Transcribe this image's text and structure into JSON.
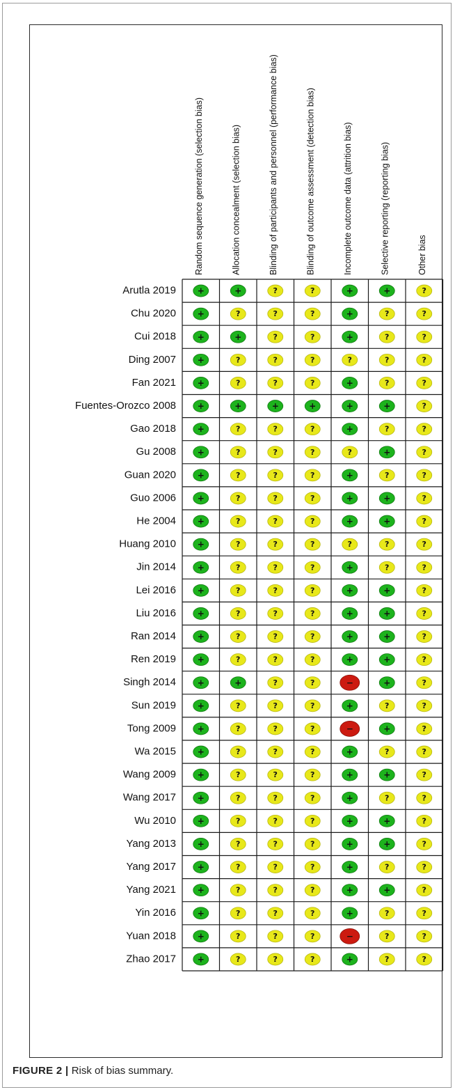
{
  "caption": {
    "label": "FIGURE 2 |",
    "text": "Risk of bias summary."
  },
  "chart_data": {
    "type": "table",
    "domains": [
      "Random sequence generation (selection bias)",
      "Allocation concealment (selection bias)",
      "Blinding of participants and personnel (performance bias)",
      "Blinding of outcome assessment (detection bias)",
      "Incomplete outcome data (attrition bias)",
      "Selective reporting (reporting bias)",
      "Other bias"
    ],
    "legend": {
      "+": {
        "symbol": "+",
        "color": "#1db31d"
      },
      "?": {
        "symbol": "?",
        "color": "#e8e81a"
      },
      "-": {
        "symbol": "−",
        "color": "#cc1a10"
      }
    },
    "studies": [
      {
        "name": "Arutla 2019",
        "ratings": [
          "+",
          "+",
          "?",
          "?",
          "+",
          "+",
          "?"
        ]
      },
      {
        "name": "Chu 2020",
        "ratings": [
          "+",
          "?",
          "?",
          "?",
          "+",
          "?",
          "?"
        ]
      },
      {
        "name": "Cui 2018",
        "ratings": [
          "+",
          "+",
          "?",
          "?",
          "+",
          "?",
          "?"
        ]
      },
      {
        "name": "Ding 2007",
        "ratings": [
          "+",
          "?",
          "?",
          "?",
          "?",
          "?",
          "?"
        ]
      },
      {
        "name": "Fan 2021",
        "ratings": [
          "+",
          "?",
          "?",
          "?",
          "+",
          "?",
          "?"
        ]
      },
      {
        "name": "Fuentes-Orozco 2008",
        "ratings": [
          "+",
          "+",
          "+",
          "+",
          "+",
          "+",
          "?"
        ]
      },
      {
        "name": "Gao 2018",
        "ratings": [
          "+",
          "?",
          "?",
          "?",
          "+",
          "?",
          "?"
        ]
      },
      {
        "name": "Gu 2008",
        "ratings": [
          "+",
          "?",
          "?",
          "?",
          "?",
          "+",
          "?"
        ]
      },
      {
        "name": "Guan 2020",
        "ratings": [
          "+",
          "?",
          "?",
          "?",
          "+",
          "?",
          "?"
        ]
      },
      {
        "name": "Guo 2006",
        "ratings": [
          "+",
          "?",
          "?",
          "?",
          "+",
          "+",
          "?"
        ]
      },
      {
        "name": "He 2004",
        "ratings": [
          "+",
          "?",
          "?",
          "?",
          "+",
          "+",
          "?"
        ]
      },
      {
        "name": "Huang 2010",
        "ratings": [
          "+",
          "?",
          "?",
          "?",
          "?",
          "?",
          "?"
        ]
      },
      {
        "name": "Jin 2014",
        "ratings": [
          "+",
          "?",
          "?",
          "?",
          "+",
          "?",
          "?"
        ]
      },
      {
        "name": "Lei 2016",
        "ratings": [
          "+",
          "?",
          "?",
          "?",
          "+",
          "+",
          "?"
        ]
      },
      {
        "name": "Liu 2016",
        "ratings": [
          "+",
          "?",
          "?",
          "?",
          "+",
          "+",
          "?"
        ]
      },
      {
        "name": "Ran 2014",
        "ratings": [
          "+",
          "?",
          "?",
          "?",
          "+",
          "+",
          "?"
        ]
      },
      {
        "name": "Ren 2019",
        "ratings": [
          "+",
          "?",
          "?",
          "?",
          "+",
          "+",
          "?"
        ]
      },
      {
        "name": "Singh 2014",
        "ratings": [
          "+",
          "+",
          "?",
          "?",
          "-",
          "+",
          "?"
        ]
      },
      {
        "name": "Sun 2019",
        "ratings": [
          "+",
          "?",
          "?",
          "?",
          "+",
          "?",
          "?"
        ]
      },
      {
        "name": "Tong 2009",
        "ratings": [
          "+",
          "?",
          "?",
          "?",
          "-",
          "+",
          "?"
        ]
      },
      {
        "name": "Wa 2015",
        "ratings": [
          "+",
          "?",
          "?",
          "?",
          "+",
          "?",
          "?"
        ]
      },
      {
        "name": "Wang 2009",
        "ratings": [
          "+",
          "?",
          "?",
          "?",
          "+",
          "+",
          "?"
        ]
      },
      {
        "name": "Wang 2017",
        "ratings": [
          "+",
          "?",
          "?",
          "?",
          "+",
          "?",
          "?"
        ]
      },
      {
        "name": "Wu 2010",
        "ratings": [
          "+",
          "?",
          "?",
          "?",
          "+",
          "+",
          "?"
        ]
      },
      {
        "name": "Yang 2013",
        "ratings": [
          "+",
          "?",
          "?",
          "?",
          "+",
          "+",
          "?"
        ]
      },
      {
        "name": "Yang 2017",
        "ratings": [
          "+",
          "?",
          "?",
          "?",
          "+",
          "?",
          "?"
        ]
      },
      {
        "name": "Yang 2021",
        "ratings": [
          "+",
          "?",
          "?",
          "?",
          "+",
          "+",
          "?"
        ]
      },
      {
        "name": "Yin 2016",
        "ratings": [
          "+",
          "?",
          "?",
          "?",
          "+",
          "?",
          "?"
        ]
      },
      {
        "name": "Yuan 2018",
        "ratings": [
          "+",
          "?",
          "?",
          "?",
          "-",
          "?",
          "?"
        ]
      },
      {
        "name": "Zhao 2017",
        "ratings": [
          "+",
          "?",
          "?",
          "?",
          "+",
          "?",
          "?"
        ]
      }
    ]
  }
}
